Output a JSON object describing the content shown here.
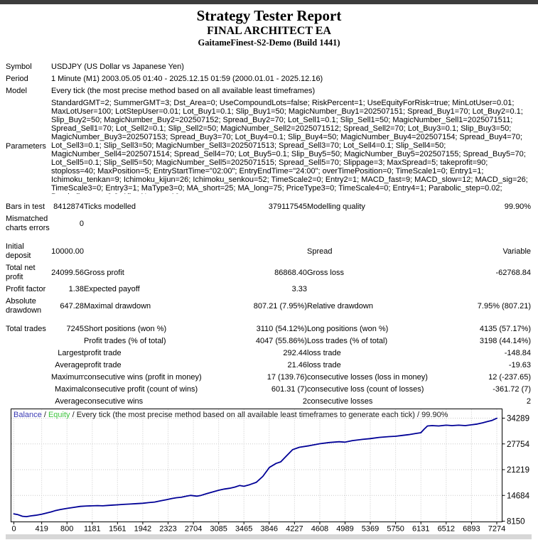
{
  "header": {
    "title": "Strategy Tester Report",
    "ea_name": "FINAL ARCHITECT EA",
    "account": "GaitameFinest-S2-Demo (Build 1441)"
  },
  "info": [
    {
      "label": "Symbol",
      "value": "USDJPY (US Dollar vs Japanese Yen)"
    },
    {
      "label": "Period",
      "value": "1 Minute (M1) 2003.05.05 01:40 - 2025.12.15 01:59 (2000.01.01 - 2025.12.16)"
    },
    {
      "label": "Model",
      "value": "Every tick (the most precise method based on all available least timeframes)"
    },
    {
      "label": "Parameters",
      "tall": true,
      "value": "StandardGMT=2; SummerGMT=3; Dst_Area=0; UseCompoundLots=false; RiskPercent=1; UseEquityForRisk=true; MinLotUser=0.01; MaxLotUser=100; LotStepUser=0.01; Lot_Buy1=0.1; Slip_Buy1=50; MagicNumber_Buy1=202507151; Spread_Buy1=70; Lot_Buy2=0.1; Slip_Buy2=50; MagicNumber_Buy2=202507152; Spread_Buy2=70; Lot_Sell1=0.1; Slip_Sell1=50; MagicNumber_Sell1=2025071511; Spread_Sell1=70; Lot_Sell2=0.1; Slip_Sell2=50; MagicNumber_Sell2=2025071512; Spread_Sell2=70; Lot_Buy3=0.1; Slip_Buy3=50; MagicNumber_Buy3=202507153; Spread_Buy3=70; Lot_Buy4=0.1; Slip_Buy4=50; MagicNumber_Buy4=202507154; Spread_Buy4=70; Lot_Sell3=0.1; Slip_Sell3=50; MagicNumber_Sell3=2025071513; Spread_Sell3=70; Lot_Sell4=0.1; Slip_Sell4=50; MagicNumber_Sell4=2025071514; Spread_Sell4=70; Lot_Buy5=0.1; Slip_Buy5=50; MagicNumber_Buy5=202507155; Spread_Buy5=70; Lot_Sell5=0.1; Slip_Sell5=50; MagicNumber_Sell5=2025071515; Spread_Sell5=70; Slippage=3; MaxSpread=5; takeprofit=90; stoploss=40; MaxPosition=5; EntryStartTime=\"02:00\"; EntryEndTime=\"24:00\"; overTimePosition=0; TimeScale1=0; Entry1=1; Ichimoku_tenkan=9; Ichimoku_kijun=26; Ichimoku_senkou=52; TimeScale2=0; Entry2=1; MACD_fast=9; MACD_slow=12; MACD_sig=26; TimeScale3=0; Entry3=1; MaType3=0; MA_short=25; MA_long=75; PriceType3=0; TimeScale4=0; Entry4=1; Parabolic_step=0.02; Parabolic_max=0.2; AllowNarrow=10;"
    }
  ],
  "stats": [
    {
      "gap": "lg"
    },
    {
      "cells": [
        "Bars in test",
        "8412874",
        "Ticks modelled",
        "379117545",
        "Modelling quality",
        "99.90%"
      ]
    },
    {
      "cells": [
        "Mismatched charts errors",
        "0",
        "",
        "",
        "",
        ""
      ]
    },
    {
      "gap": "sm"
    },
    {
      "cells": [
        "Initial deposit",
        "10000.00",
        "",
        "",
        "Spread",
        "Variable"
      ]
    },
    {
      "cells": [
        "Total net profit",
        "24099.56",
        "Gross profit",
        "86868.40",
        "Gross loss",
        "-62768.84"
      ]
    },
    {
      "cells": [
        "Profit factor",
        "1.38",
        "Expected payoff",
        "3.33",
        "",
        ""
      ]
    },
    {
      "cells": [
        "Absolute drawdown",
        "647.28",
        "Maximal drawdown",
        "807.21 (7.95%)",
        "Relative drawdown",
        "7.95% (807.21)"
      ]
    },
    {
      "gap": "sm"
    },
    {
      "cells": [
        "Total trades",
        "7245",
        "Short positions (won %)",
        "3110 (54.12%)",
        "Long positions (won %)",
        "4135 (57.17%)"
      ]
    },
    {
      "cells": [
        "",
        "",
        "Profit trades (% of total)",
        "4047 (55.86%)",
        "Loss trades (% of total)",
        "3198 (44.14%)"
      ]
    },
    {
      "cells": [
        "",
        "Largest",
        "profit trade",
        "292.44",
        "loss trade",
        "-148.84"
      ]
    },
    {
      "cells": [
        "",
        "Average",
        "profit trade",
        "21.46",
        "loss trade",
        "-19.63"
      ]
    },
    {
      "cells": [
        "",
        "Maximum",
        "consecutive wins (profit in money)",
        "17 (139.76)",
        "consecutive losses (loss in money)",
        "12 (-237.65)"
      ]
    },
    {
      "cells": [
        "",
        "Maximal",
        "consecutive profit (count of wins)",
        "601.31 (7)",
        "consecutive loss (count of losses)",
        "-361.72 (7)"
      ]
    },
    {
      "cells": [
        "",
        "Average",
        "consecutive wins",
        "2",
        "consecutive losses",
        "2"
      ]
    }
  ],
  "chart_data": {
    "type": "line",
    "title": "Balance / Equity / Every tick (the most precise method based on all available least timeframes to generate each tick) / 99.90%",
    "legend": {
      "balance": "Balance",
      "equity": "Equity",
      "sep": " / ",
      "description": "Every tick (the most precise method based on all available least timeframes to generate each tick)",
      "quality": "99.90%"
    },
    "xlabel": "",
    "ylabel": "",
    "x_ticks": [
      0,
      419,
      800,
      1181,
      1561,
      1942,
      2323,
      2704,
      3085,
      3465,
      3846,
      4227,
      4608,
      4989,
      5369,
      5750,
      6131,
      6512,
      6893,
      7274
    ],
    "y_ticks": [
      34289,
      27754,
      21219,
      14684,
      8150
    ],
    "x_range": [
      0,
      7274
    ],
    "y_range": [
      8150,
      34289
    ],
    "grid": true,
    "legend_position": "top-left",
    "colors": {
      "balance_line": "#000096",
      "balance_text": "#3a3ab4",
      "equity_text": "#3fc43f",
      "grid": "#c9c9c9"
    },
    "series": [
      {
        "name": "Balance",
        "points": [
          [
            0,
            10000
          ],
          [
            60,
            9800
          ],
          [
            130,
            9400
          ],
          [
            190,
            9300
          ],
          [
            260,
            9500
          ],
          [
            330,
            9650
          ],
          [
            419,
            9900
          ],
          [
            500,
            10250
          ],
          [
            560,
            10500
          ],
          [
            620,
            10800
          ],
          [
            700,
            11100
          ],
          [
            800,
            11400
          ],
          [
            900,
            11650
          ],
          [
            1000,
            11900
          ],
          [
            1100,
            12000
          ],
          [
            1181,
            12050
          ],
          [
            1260,
            12100
          ],
          [
            1340,
            12050
          ],
          [
            1420,
            12150
          ],
          [
            1500,
            12250
          ],
          [
            1561,
            12300
          ],
          [
            1650,
            12400
          ],
          [
            1750,
            12500
          ],
          [
            1850,
            12600
          ],
          [
            1942,
            12700
          ],
          [
            2030,
            12850
          ],
          [
            2120,
            13000
          ],
          [
            2210,
            13300
          ],
          [
            2300,
            13600
          ],
          [
            2380,
            13900
          ],
          [
            2450,
            14100
          ],
          [
            2520,
            14200
          ],
          [
            2600,
            14500
          ],
          [
            2660,
            14700
          ],
          [
            2704,
            14600
          ],
          [
            2760,
            14500
          ],
          [
            2820,
            14700
          ],
          [
            2900,
            15100
          ],
          [
            3000,
            15600
          ],
          [
            3085,
            16000
          ],
          [
            3170,
            16300
          ],
          [
            3250,
            16500
          ],
          [
            3330,
            16800
          ],
          [
            3400,
            17200
          ],
          [
            3465,
            17000
          ],
          [
            3550,
            17400
          ],
          [
            3650,
            18000
          ],
          [
            3750,
            19500
          ],
          [
            3850,
            21800
          ],
          [
            3950,
            22800
          ],
          [
            4020,
            23200
          ],
          [
            4100,
            24600
          ],
          [
            4200,
            26300
          ],
          [
            4300,
            26900
          ],
          [
            4450,
            27300
          ],
          [
            4608,
            27800
          ],
          [
            4750,
            28100
          ],
          [
            4900,
            28300
          ],
          [
            4989,
            28200
          ],
          [
            5100,
            28600
          ],
          [
            5250,
            28900
          ],
          [
            5369,
            29100
          ],
          [
            5500,
            29400
          ],
          [
            5650,
            29600
          ],
          [
            5750,
            29700
          ],
          [
            5850,
            29900
          ],
          [
            5950,
            30100
          ],
          [
            6050,
            30400
          ],
          [
            6131,
            30600
          ],
          [
            6180,
            31500
          ],
          [
            6230,
            32300
          ],
          [
            6300,
            32400
          ],
          [
            6400,
            32300
          ],
          [
            6512,
            32500
          ],
          [
            6600,
            32400
          ],
          [
            6700,
            32500
          ],
          [
            6800,
            32400
          ],
          [
            6893,
            32600
          ],
          [
            6980,
            32800
          ],
          [
            7060,
            33100
          ],
          [
            7130,
            33400
          ],
          [
            7200,
            33700
          ],
          [
            7240,
            34000
          ],
          [
            7274,
            34250
          ]
        ]
      }
    ]
  }
}
